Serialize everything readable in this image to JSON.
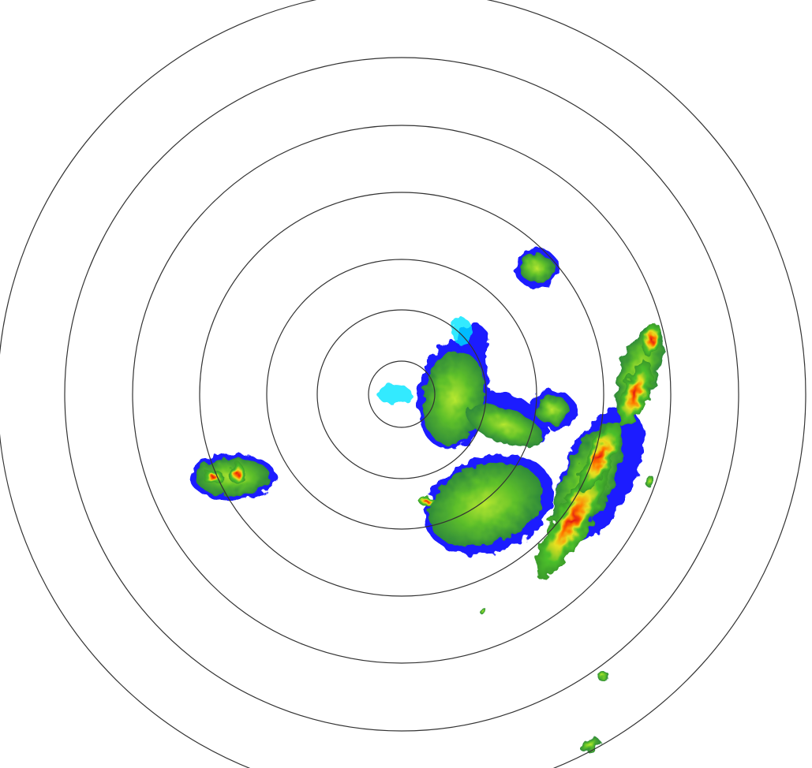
{
  "radar": {
    "ring_count": 7,
    "ring_color": "#333333",
    "colors": {
      "light": "#00e5ff",
      "weak": "#1a1aff",
      "low": "#3a9a2a",
      "moderate": "#7fd62a",
      "high": "#e8e020",
      "heavy": "#ff7a00",
      "intense": "#e01010"
    }
  }
}
